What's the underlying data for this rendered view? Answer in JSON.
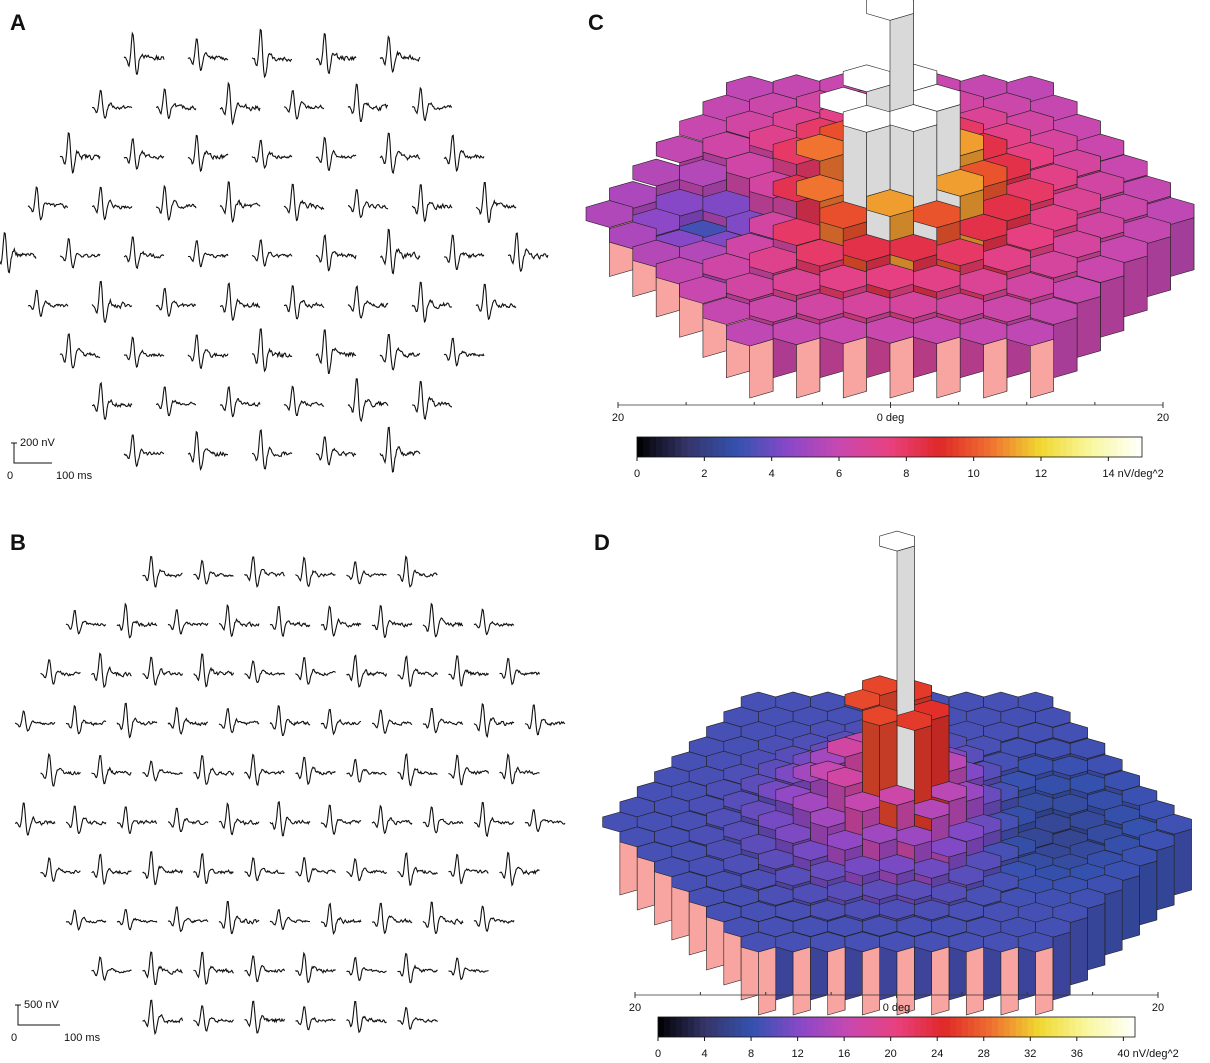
{
  "chart_data": [
    {
      "type": "traces",
      "panel": "A",
      "scale_bar": {
        "amplitude": "200 nV",
        "origin": "0",
        "time": "100 ms"
      }
    },
    {
      "type": "traces",
      "panel": "B",
      "scale_bar": {
        "amplitude": "500 nV",
        "origin": "0",
        "time": "100 ms"
      }
    },
    {
      "type": "surface",
      "panel": "C",
      "xlim": [
        -20,
        20
      ],
      "xticks": [
        {
          "value": -20,
          "label": "20"
        },
        {
          "value": 0,
          "label": "0 deg"
        },
        {
          "value": 20,
          "label": "20"
        }
      ],
      "minor_xticks": [
        -15,
        -10,
        -5,
        5,
        10,
        15
      ],
      "colorbar": {
        "lim": [
          0,
          15
        ],
        "ticks": [
          0,
          2,
          4,
          6,
          8,
          10,
          12,
          {
            "value": 14,
            "label": "14 nV/deg^2"
          }
        ]
      },
      "colormap": [
        "#000000",
        "#35356a",
        "#3552b0",
        "#8a48c8",
        "#c848b0",
        "#e84080",
        "#e02828",
        "#f07030",
        "#f0d830",
        "#f8f8a0",
        "#ffffff"
      ],
      "wall_color": "#f8a4a0"
    },
    {
      "type": "surface",
      "panel": "D",
      "xlim": [
        -20,
        20
      ],
      "xticks": [
        {
          "value": -20,
          "label": "20"
        },
        {
          "value": 0,
          "label": "0 deg"
        },
        {
          "value": 20,
          "label": "20"
        }
      ],
      "minor_xticks": [
        -15,
        -10,
        -5,
        5,
        10,
        15
      ],
      "colorbar": {
        "lim": [
          0,
          41
        ],
        "ticks": [
          0,
          4,
          8,
          12,
          16,
          20,
          24,
          28,
          32,
          36,
          {
            "value": 40,
            "label": "40 nV/deg^2"
          }
        ]
      },
      "colormap": [
        "#000000",
        "#35356a",
        "#3552b0",
        "#8a48c8",
        "#c848b0",
        "#e84080",
        "#e02828",
        "#f07030",
        "#f0d830",
        "#f8f8a0",
        "#ffffff"
      ],
      "wall_color": "#f8a4a0"
    }
  ]
}
